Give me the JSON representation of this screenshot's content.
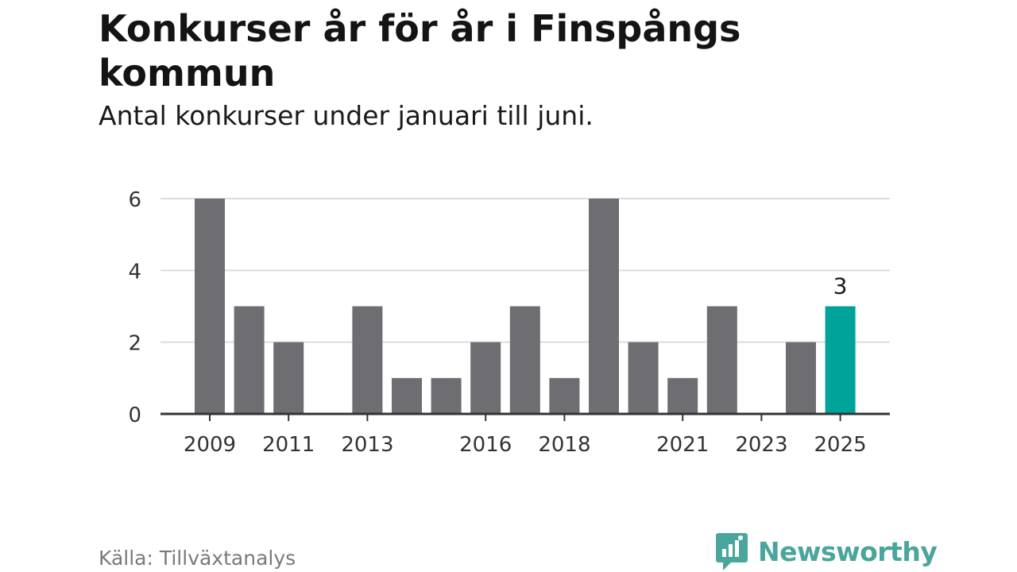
{
  "header": {
    "title": "Konkurser år för år i Finspångs kommun",
    "subtitle": "Antal konkurser under januari till juni."
  },
  "footer": {
    "source": "Källa: Tillväxtanalys",
    "brand": "Newsworthy"
  },
  "colors": {
    "bar": "#6e6d72",
    "highlight": "#00a39a",
    "grid": "#dcdcdc",
    "axis": "#333333",
    "brand": "#4aa59c"
  },
  "chart_data": {
    "type": "bar",
    "categories": [
      "2009",
      "2010",
      "2011",
      "2012",
      "2013",
      "2014",
      "2015",
      "2016",
      "2017",
      "2018",
      "2019",
      "2020",
      "2021",
      "2022",
      "2023",
      "2024",
      "2025"
    ],
    "values": [
      6,
      3,
      2,
      0,
      3,
      1,
      1,
      2,
      3,
      1,
      6,
      2,
      1,
      3,
      0,
      2,
      3
    ],
    "x_tick_labels": [
      "2009",
      "2011",
      "2013",
      "2016",
      "2018",
      "2021",
      "2023",
      "2025"
    ],
    "y_ticks": [
      0,
      2,
      4,
      6
    ],
    "ylim": [
      0,
      6
    ],
    "grid": true,
    "highlight_category": "2025",
    "data_labels": [
      {
        "category": "2025",
        "text": "3"
      }
    ]
  }
}
